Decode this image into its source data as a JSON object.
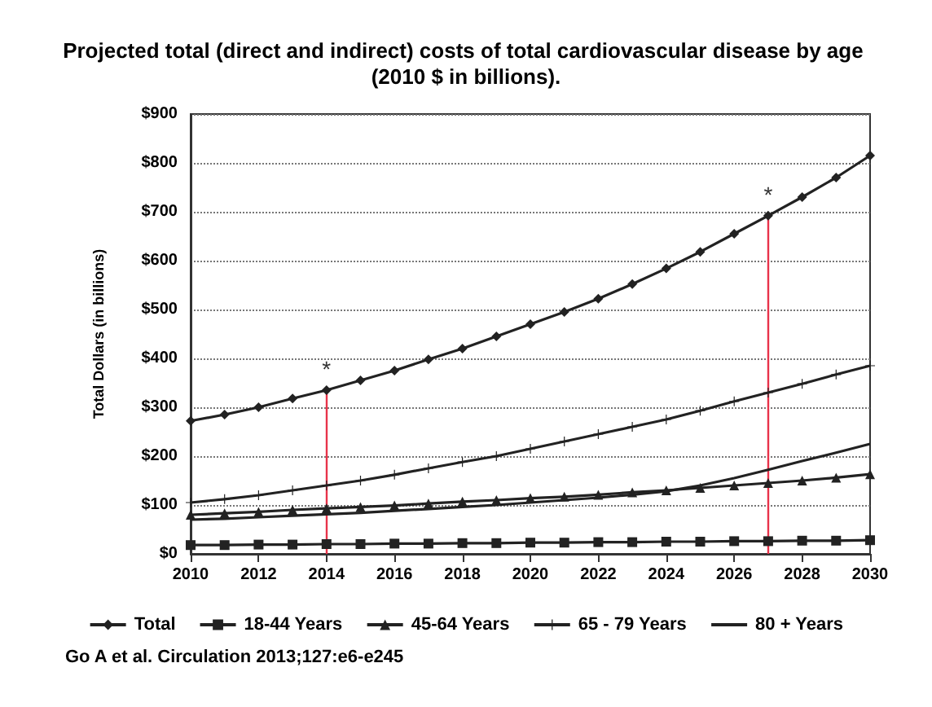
{
  "chart_data": {
    "type": "line",
    "title": "Projected total (direct and indirect) costs of total cardiovascular disease by age (2010 $ in billions).",
    "ylabel": "Total Dollars (in billions)",
    "x": [
      2010,
      2011,
      2012,
      2013,
      2014,
      2015,
      2016,
      2017,
      2018,
      2019,
      2020,
      2021,
      2022,
      2023,
      2024,
      2025,
      2026,
      2027,
      2028,
      2029,
      2030
    ],
    "xlim": [
      2010,
      2030
    ],
    "xticks": [
      2010,
      2012,
      2014,
      2016,
      2018,
      2020,
      2022,
      2024,
      2026,
      2028,
      2030
    ],
    "ylim": [
      0,
      900
    ],
    "yticks": [
      {
        "value": 0,
        "label": "$0"
      },
      {
        "value": 100,
        "label": "$100"
      },
      {
        "value": 200,
        "label": "$200"
      },
      {
        "value": 300,
        "label": "$300"
      },
      {
        "value": 400,
        "label": "$400"
      },
      {
        "value": 500,
        "label": "$500"
      },
      {
        "value": 600,
        "label": "$600"
      },
      {
        "value": 700,
        "label": "$700"
      },
      {
        "value": 800,
        "label": "$800"
      },
      {
        "value": 900,
        "label": "$900"
      }
    ],
    "grid": "y",
    "legend": "bottom",
    "series": [
      {
        "name": "Total",
        "color": "#222222",
        "marker": "diamond",
        "values": [
          272,
          285,
          300,
          318,
          335,
          355,
          375,
          398,
          420,
          445,
          470,
          495,
          522,
          552,
          584,
          618,
          655,
          692,
          730,
          770,
          815
        ]
      },
      {
        "name": "18-44 Years",
        "color": "#222222",
        "marker": "square",
        "values": [
          18,
          18,
          19,
          19,
          20,
          20,
          21,
          21,
          22,
          22,
          23,
          23,
          24,
          24,
          25,
          25,
          26,
          26,
          27,
          27,
          28
        ]
      },
      {
        "name": "45-64 Years",
        "color": "#222222",
        "marker": "triangle",
        "values": [
          80,
          83,
          86,
          90,
          93,
          96,
          99,
          103,
          107,
          110,
          114,
          117,
          121,
          126,
          130,
          135,
          140,
          145,
          150,
          156,
          163
        ]
      },
      {
        "name": "65 - 79 Years",
        "color": "#222222",
        "marker": "cross",
        "values": [
          105,
          112,
          120,
          130,
          140,
          150,
          162,
          175,
          188,
          200,
          215,
          230,
          245,
          260,
          275,
          293,
          312,
          330,
          348,
          367,
          385
        ]
      },
      {
        "name": "80 + Years",
        "color": "#222222",
        "marker": "none",
        "values": [
          70,
          72,
          75,
          78,
          81,
          84,
          88,
          92,
          96,
          100,
          105,
          110,
          115,
          121,
          128,
          140,
          155,
          172,
          190,
          207,
          225
        ]
      }
    ],
    "ref_lines": [
      {
        "axis": "x",
        "value": 2014,
        "color": "#e8334a"
      },
      {
        "axis": "x",
        "value": 2027,
        "color": "#e8334a"
      }
    ],
    "annotations": [
      {
        "text": "*",
        "x": 2014,
        "y": 335
      },
      {
        "text": "*",
        "x": 2027,
        "y": 692
      },
      "Go A et al. Circulation 2013;127:e6-e245"
    ]
  }
}
